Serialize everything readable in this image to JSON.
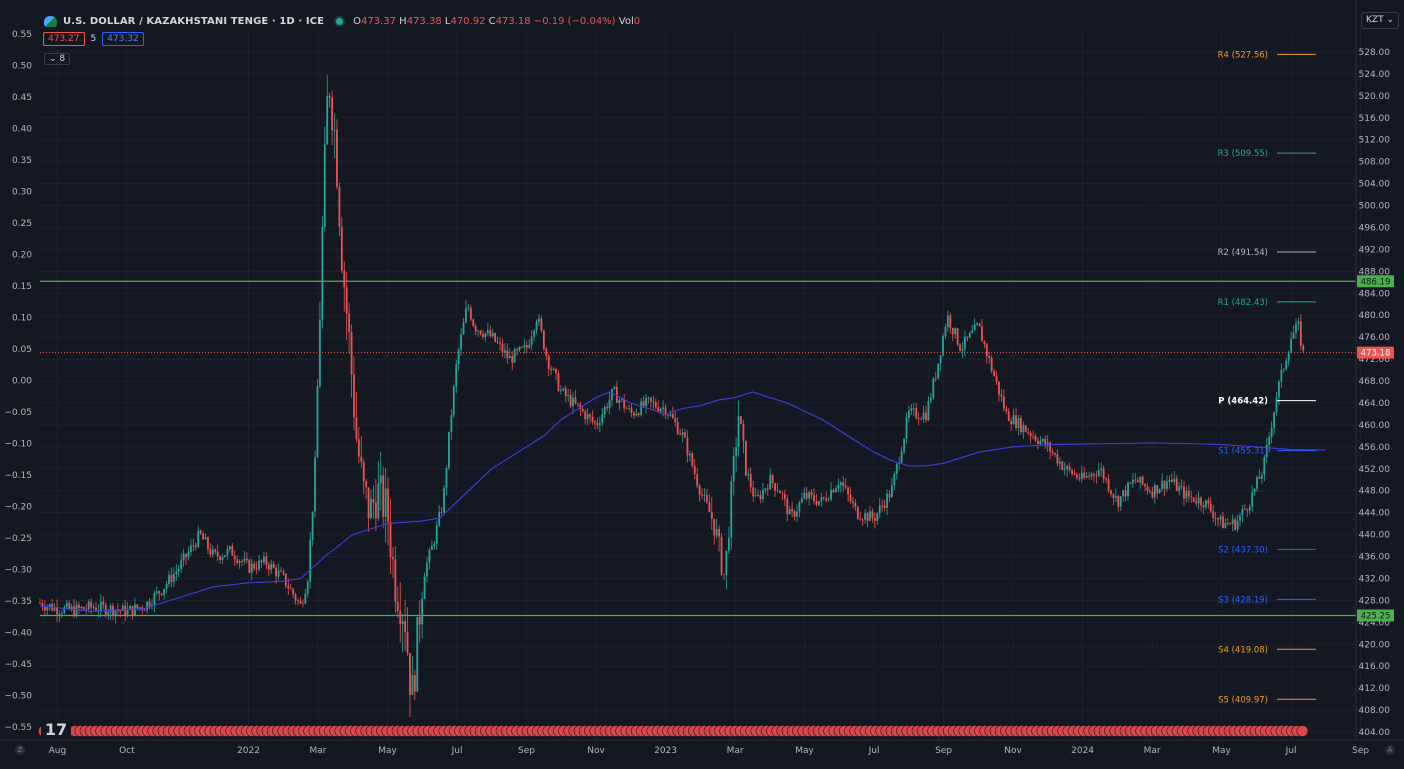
{
  "header": {
    "symbol_title": "U.S. DOLLAR / KAZAKHSTANI TENGE · 1D · ICE",
    "ohlc": {
      "o_label": "O",
      "o": "473.37",
      "h_label": "H",
      "h": "473.38",
      "l_label": "L",
      "l": "470.92",
      "c_label": "C",
      "c": "473.18",
      "chg": "−0.19 (−0.04%)",
      "vol_label": "Vol",
      "vol": "0"
    },
    "bid": "473.27",
    "spread": "5",
    "ask": "473.32",
    "indicators_toggle": "8",
    "currency_button": "KZT ⌄"
  },
  "corners": {
    "left": "Z",
    "right": "A"
  },
  "chart_data": {
    "type": "candlestick",
    "y_right": {
      "ticks": [
        "528.00",
        "524.00",
        "520.00",
        "516.00",
        "512.00",
        "508.00",
        "504.00",
        "500.00",
        "496.00",
        "492.00",
        "488.00",
        "484.00",
        "480.00",
        "476.00",
        "472.00",
        "468.00",
        "464.00",
        "460.00",
        "456.00",
        "452.00",
        "448.00",
        "444.00",
        "440.00",
        "436.00",
        "432.00",
        "428.00",
        "424.00",
        "420.00",
        "416.00",
        "412.00",
        "408.00",
        "404.00"
      ]
    },
    "y_left": {
      "ticks": [
        "0.55",
        "0.50",
        "0.45",
        "0.40",
        "0.35",
        "0.30",
        "0.25",
        "0.20",
        "0.15",
        "0.10",
        "0.05",
        "0.00",
        "−0.05",
        "−0.10",
        "−0.15",
        "−0.20",
        "−0.25",
        "−0.30",
        "−0.35",
        "−0.40",
        "−0.45",
        "−0.50",
        "−0.55"
      ]
    },
    "x_ticks": [
      {
        "label": "Aug",
        "t": 0.5
      },
      {
        "label": "Oct",
        "t": 2.5
      },
      {
        "label": "2022",
        "t": 6
      },
      {
        "label": "Mar",
        "t": 8
      },
      {
        "label": "May",
        "t": 10
      },
      {
        "label": "Jul",
        "t": 12
      },
      {
        "label": "Sep",
        "t": 14
      },
      {
        "label": "Nov",
        "t": 16
      },
      {
        "label": "2023",
        "t": 18
      },
      {
        "label": "Mar",
        "t": 20
      },
      {
        "label": "May",
        "t": 22
      },
      {
        "label": "Jul",
        "t": 24
      },
      {
        "label": "Sep",
        "t": 26
      },
      {
        "label": "Nov",
        "t": 28
      },
      {
        "label": "2024",
        "t": 30
      },
      {
        "label": "Mar",
        "t": 32
      },
      {
        "label": "May",
        "t": 34
      },
      {
        "label": "Jul",
        "t": 36
      },
      {
        "label": "Sep",
        "t": 38
      }
    ],
    "price_path": [
      [
        0,
        427.5
      ],
      [
        0.5,
        426.5
      ],
      [
        1,
        426.2
      ],
      [
        1.5,
        426.8
      ],
      [
        2,
        426.5
      ],
      [
        2.5,
        426.0
      ],
      [
        3,
        427
      ],
      [
        3.5,
        430
      ],
      [
        4,
        434
      ],
      [
        4.3,
        437
      ],
      [
        4.6,
        440
      ],
      [
        5,
        436
      ],
      [
        5.5,
        437
      ],
      [
        6,
        434
      ],
      [
        6.5,
        435
      ],
      [
        7,
        432
      ],
      [
        7.5,
        427
      ],
      [
        7.7,
        432
      ],
      [
        7.9,
        450
      ],
      [
        8.05,
        480
      ],
      [
        8.15,
        500
      ],
      [
        8.3,
        524
      ],
      [
        8.5,
        512
      ],
      [
        8.7,
        490
      ],
      [
        8.9,
        475
      ],
      [
        9.1,
        458
      ],
      [
        9.3,
        448
      ],
      [
        9.5,
        444
      ],
      [
        9.7,
        448
      ],
      [
        10,
        444
      ],
      [
        10.2,
        432
      ],
      [
        10.5,
        425
      ],
      [
        10.7,
        410
      ],
      [
        10.85,
        420
      ],
      [
        11,
        432
      ],
      [
        11.3,
        438
      ],
      [
        11.6,
        446
      ],
      [
        11.8,
        460
      ],
      [
        12,
        472
      ],
      [
        12.3,
        482
      ],
      [
        12.5,
        478
      ],
      [
        13,
        476
      ],
      [
        13.5,
        472
      ],
      [
        14,
        474
      ],
      [
        14.3,
        480
      ],
      [
        14.6,
        472
      ],
      [
        15,
        466
      ],
      [
        15.5,
        463
      ],
      [
        16,
        460
      ],
      [
        16.5,
        466
      ],
      [
        17,
        462
      ],
      [
        17.5,
        464
      ],
      [
        18,
        463
      ],
      [
        18.5,
        458
      ],
      [
        19,
        448
      ],
      [
        19.4,
        442
      ],
      [
        19.7,
        432
      ],
      [
        19.9,
        448
      ],
      [
        20.1,
        462
      ],
      [
        20.3,
        452
      ],
      [
        20.6,
        446
      ],
      [
        21,
        450
      ],
      [
        21.3,
        448
      ],
      [
        21.6,
        443
      ],
      [
        22,
        447
      ],
      [
        22.5,
        446
      ],
      [
        23,
        450
      ],
      [
        23.5,
        444
      ],
      [
        24,
        443
      ],
      [
        24.5,
        448
      ],
      [
        25,
        462
      ],
      [
        25.5,
        462
      ],
      [
        25.8,
        470
      ],
      [
        26.1,
        480
      ],
      [
        26.5,
        474
      ],
      [
        27,
        478
      ],
      [
        27.4,
        470
      ],
      [
        27.8,
        462
      ],
      [
        28.2,
        460
      ],
      [
        28.6,
        458
      ],
      [
        29,
        456
      ],
      [
        29.5,
        452
      ],
      [
        30,
        450
      ],
      [
        30.5,
        452
      ],
      [
        31,
        446
      ],
      [
        31.5,
        450
      ],
      [
        32,
        448
      ],
      [
        32.5,
        450
      ],
      [
        33,
        447
      ],
      [
        33.5,
        446
      ],
      [
        34,
        442
      ],
      [
        34.4,
        442
      ],
      [
        34.8,
        446
      ],
      [
        35.2,
        452
      ],
      [
        35.6,
        466
      ],
      [
        36,
        476
      ],
      [
        36.2,
        478
      ],
      [
        36.35,
        473
      ]
    ],
    "ma_path": [
      [
        0,
        427
      ],
      [
        1.5,
        426
      ],
      [
        3,
        426.5
      ],
      [
        4,
        428.5
      ],
      [
        5,
        430.5
      ],
      [
        6,
        431.2
      ],
      [
        7,
        431.5
      ],
      [
        7.5,
        432
      ],
      [
        8.2,
        436
      ],
      [
        9,
        440
      ],
      [
        10,
        442
      ],
      [
        11,
        442.5
      ],
      [
        11.5,
        443
      ],
      [
        12,
        446
      ],
      [
        12.5,
        449
      ],
      [
        13,
        452
      ],
      [
        14,
        456
      ],
      [
        14.5,
        458
      ],
      [
        15,
        461
      ],
      [
        15.5,
        463
      ],
      [
        16,
        465
      ],
      [
        16.4,
        466
      ],
      [
        17,
        464
      ],
      [
        17.5,
        463
      ],
      [
        18,
        462
      ],
      [
        18.5,
        463
      ],
      [
        19,
        463.5
      ],
      [
        19.5,
        464.5
      ],
      [
        20,
        465
      ],
      [
        20.5,
        466
      ],
      [
        21,
        465
      ],
      [
        21.5,
        464
      ],
      [
        22,
        462.5
      ],
      [
        22.5,
        461
      ],
      [
        23,
        459
      ],
      [
        23.5,
        457
      ],
      [
        24,
        455
      ],
      [
        24.5,
        453.5
      ],
      [
        25,
        452.5
      ],
      [
        25.5,
        452.5
      ],
      [
        26,
        453
      ],
      [
        26.5,
        454
      ],
      [
        27,
        455
      ],
      [
        27.5,
        455.5
      ],
      [
        28,
        456
      ],
      [
        29,
        456.4
      ],
      [
        30,
        456.5
      ],
      [
        31,
        456.6
      ],
      [
        32,
        456.7
      ],
      [
        33,
        456.6
      ],
      [
        34,
        456.4
      ],
      [
        35,
        456
      ],
      [
        36,
        455.5
      ],
      [
        37,
        455.4
      ]
    ],
    "horizontal_levels": [
      {
        "value": 486.19,
        "label": "486.19",
        "color": "#4caf50"
      },
      {
        "value": 425.25,
        "label": "425.25",
        "color": "#4caf50"
      }
    ],
    "last_price": {
      "value": 473.18,
      "label": "473.18",
      "color": "#ef5350"
    },
    "pivots": [
      {
        "name": "R4 (527.56)",
        "value": 527.56,
        "color": "#f29a22"
      },
      {
        "name": "R3 (509.55)",
        "value": 509.55,
        "color": "#26a69a"
      },
      {
        "name": "R2 (491.54)",
        "value": 491.54,
        "color": "#b2b5be"
      },
      {
        "name": "R1 (482.43)",
        "value": 482.43,
        "color": "#26a69a"
      },
      {
        "name": "P (464.42)",
        "value": 464.42,
        "color": "#ffffff"
      },
      {
        "name": "S1 (455.31)",
        "value": 455.31,
        "color": "#2962ff"
      },
      {
        "name": "S2 (437.30)",
        "value": 437.3,
        "color": "#2962ff"
      },
      {
        "name": "S3 (428.19)",
        "value": 428.19,
        "color": "#2962ff"
      },
      {
        "name": "S4 (419.08)",
        "value": 419.08,
        "color": "#f29a22"
      },
      {
        "name": "S5 (409.97)",
        "value": 409.97,
        "color": "#f29a22"
      }
    ],
    "colors": {
      "up": "#26a69a",
      "down": "#ef5350",
      "ma": "#3f3fd6",
      "grid": "#1f2330",
      "bg": "#141823"
    }
  }
}
